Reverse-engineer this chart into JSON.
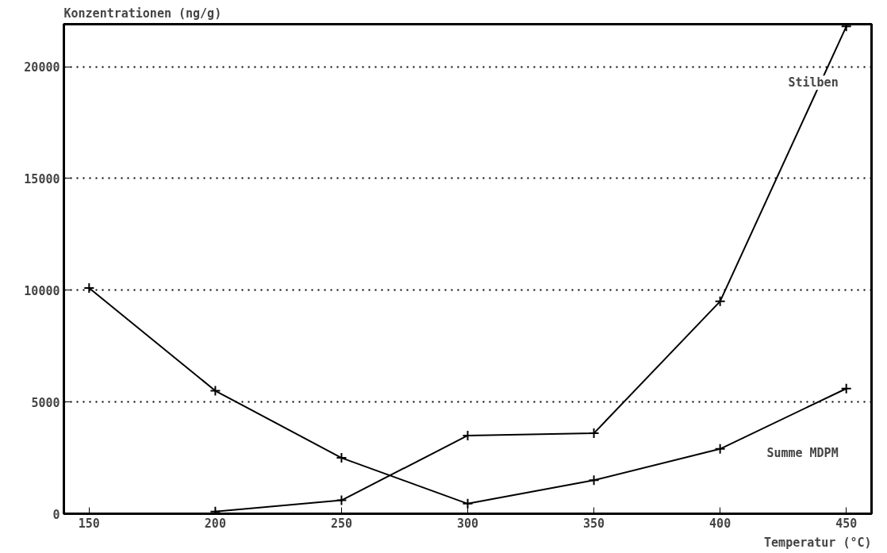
{
  "chart_data": {
    "type": "line",
    "xlabel": "Temperatur (°C)",
    "ylabel": "Konzentrationen (ng/g)",
    "xlim": [
      140,
      460
    ],
    "ylim": [
      0,
      21900
    ],
    "xticks": [
      150,
      200,
      250,
      300,
      350,
      400,
      450
    ],
    "yticks": [
      0,
      5000,
      10000,
      15000,
      20000
    ],
    "grid": "y",
    "marker": "cross",
    "line_style": "solid",
    "series": [
      {
        "name": "Summe MDPM",
        "color": "#000000",
        "x": [
          150,
          200,
          250,
          300,
          350,
          400,
          450
        ],
        "values": [
          10100,
          5500,
          2500,
          450,
          1500,
          2900,
          5600
        ]
      },
      {
        "name": "Stilben",
        "color": "#000000",
        "x": [
          200,
          250,
          300,
          350,
          400,
          450
        ],
        "values": [
          100,
          600,
          3500,
          3600,
          9500,
          21800
        ]
      }
    ]
  }
}
